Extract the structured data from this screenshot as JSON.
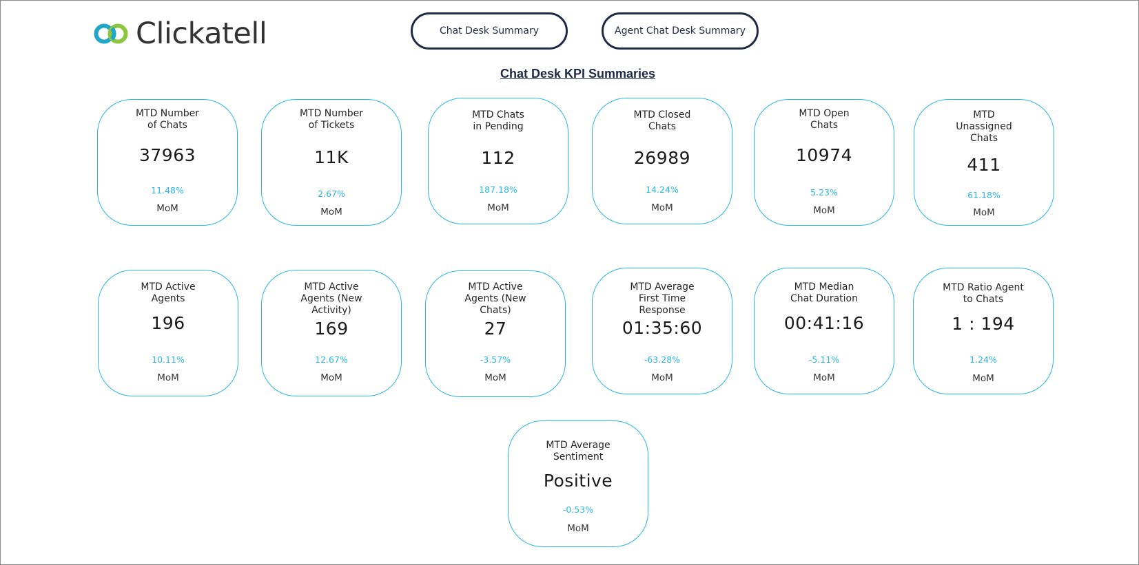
{
  "brand": {
    "name": "Clickatell",
    "colors": {
      "ring_teal": "#1fa7c9",
      "ring_green": "#8cc63f",
      "text": "#333333"
    }
  },
  "nav": {
    "chat_desk_summary": "Chat Desk Summary",
    "agent_chat_desk_summary": "Agent Chat Desk Summary"
  },
  "heading": "Chat Desk KPI Summaries",
  "colors": {
    "card_border": "#29b6e6",
    "change_text": "#29b6e6",
    "button_border": "#1f2a44"
  },
  "kpis": [
    {
      "label": "MTD Number\nof Chats",
      "value": "37963",
      "change": "11.48%",
      "period": "MoM"
    },
    {
      "label": "MTD Number\nof Tickets",
      "value": "11K",
      "change": "2.67%",
      "period": "MoM"
    },
    {
      "label": "MTD Chats\nin Pending",
      "value": "112",
      "change": "187.18%",
      "period": "MoM"
    },
    {
      "label": "MTD Closed\nChats",
      "value": "26989",
      "change": "14.24%",
      "period": "MoM"
    },
    {
      "label": "MTD Open\nChats",
      "value": "10974",
      "change": "5.23%",
      "period": "MoM"
    },
    {
      "label": "MTD\nUnassigned\nChats",
      "value": "411",
      "change": "61.18%",
      "period": "MoM"
    },
    {
      "label": "MTD Active\nAgents",
      "value": "196",
      "change": "10.11%",
      "period": "MoM"
    },
    {
      "label": "MTD Active\nAgents (New\nActivity)",
      "value": "169",
      "change": "12.67%",
      "period": "MoM"
    },
    {
      "label": "MTD Active\nAgents (New\nChats)",
      "value": "27",
      "change": "-3.57%",
      "period": "MoM"
    },
    {
      "label": "MTD Average\nFirst Time\nResponse",
      "value": "01:35:60",
      "change": "-63.28%",
      "period": "MoM"
    },
    {
      "label": "MTD Median\nChat Duration",
      "value": "00:41:16",
      "change": "-5.11%",
      "period": "MoM"
    },
    {
      "label": "MTD Ratio Agent\nto Chats",
      "value": "1 : 194",
      "change": "1.24%",
      "period": "MoM"
    },
    {
      "label": "MTD Average\nSentiment",
      "value": "Positive",
      "change": "-0.53%",
      "period": "MoM"
    }
  ]
}
